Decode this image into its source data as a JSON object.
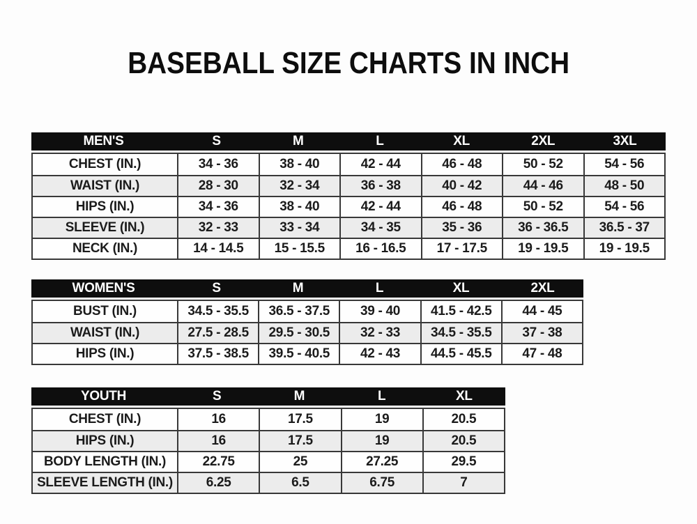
{
  "page": {
    "title": "BASEBALL SIZE CHARTS IN INCH"
  },
  "colors": {
    "header_bg": "#0e0e0e",
    "header_text": "#ffffff",
    "row_alt_bg": "#ececec",
    "border": "#383838",
    "text": "#1b1b1b"
  },
  "tables": [
    {
      "id": "mens",
      "header": [
        "MEN'S",
        "S",
        "M",
        "L",
        "XL",
        "2XL",
        "3XL"
      ],
      "rows": [
        [
          "CHEST (IN.)",
          "34 - 36",
          "38 - 40",
          "42 - 44",
          "46 - 48",
          "50 - 52",
          "54 - 56"
        ],
        [
          "WAIST (IN.)",
          "28 - 30",
          "32 - 34",
          "36 - 38",
          "40 - 42",
          "44 - 46",
          "48 - 50"
        ],
        [
          "HIPS (IN.)",
          "34 - 36",
          "38 - 40",
          "42 - 44",
          "46 - 48",
          "50 - 52",
          "54 - 56"
        ],
        [
          "SLEEVE (IN.)",
          "32 - 33",
          "33 - 34",
          "34 - 35",
          "35 - 36",
          "36 - 36.5",
          "36.5 - 37"
        ],
        [
          "NECK (IN.)",
          "14 - 14.5",
          "15 - 15.5",
          "16 - 16.5",
          "17 - 17.5",
          "19 - 19.5",
          "19 - 19.5"
        ]
      ]
    },
    {
      "id": "womens",
      "header": [
        "WOMEN'S",
        "S",
        "M",
        "L",
        "XL",
        "2XL"
      ],
      "rows": [
        [
          "BUST (IN.)",
          "34.5 - 35.5",
          "36.5 - 37.5",
          "39 - 40",
          "41.5 - 42.5",
          "44 - 45"
        ],
        [
          "WAIST (IN.)",
          "27.5 - 28.5",
          "29.5 - 30.5",
          "32 - 33",
          "34.5 - 35.5",
          "37 - 38"
        ],
        [
          "HIPS (IN.)",
          "37.5 - 38.5",
          "39.5 - 40.5",
          "42 - 43",
          "44.5 - 45.5",
          "47 - 48"
        ]
      ]
    },
    {
      "id": "youth",
      "header": [
        "YOUTH",
        "S",
        "M",
        "L",
        "XL"
      ],
      "rows": [
        [
          "CHEST (IN.)",
          "16",
          "17.5",
          "19",
          "20.5"
        ],
        [
          "HIPS (IN.)",
          "16",
          "17.5",
          "19",
          "20.5"
        ],
        [
          "BODY LENGTH (IN.)",
          "22.75",
          "25",
          "27.25",
          "29.5"
        ],
        [
          "SLEEVE LENGTH (IN.)",
          "6.25",
          "6.5",
          "6.75",
          "7"
        ]
      ]
    }
  ]
}
